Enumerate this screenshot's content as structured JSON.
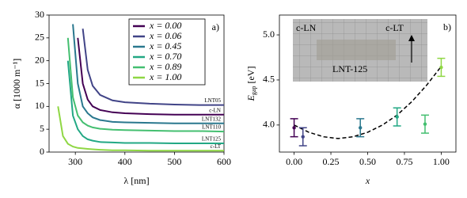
{
  "chart_data": [
    {
      "type": "line",
      "panel_label": "a)",
      "xlabel": "λ [nm]",
      "ylabel": "α [1000 m⁻¹]",
      "xlim": [
        247,
        600
      ],
      "ylim": [
        0,
        30
      ],
      "xticks": [
        300,
        400,
        500,
        600
      ],
      "yticks": [
        0,
        5,
        10,
        15,
        20,
        25,
        30
      ],
      "legend": "upper right",
      "x": [
        255,
        265,
        275,
        285,
        295,
        305,
        315,
        325,
        335,
        350,
        375,
        400,
        450,
        500,
        550,
        600
      ],
      "series": [
        {
          "name": "x = 0.00",
          "color": "#440154",
          "end_label": "c-LN",
          "values": [
            null,
            null,
            null,
            null,
            null,
            25,
            15,
            11.5,
            10,
            9.2,
            8.7,
            8.5,
            8.3,
            8.2,
            8.2,
            8.2
          ]
        },
        {
          "name": "x = 0.06",
          "color": "#414487",
          "end_label": "LNT05",
          "values": [
            null,
            null,
            null,
            null,
            null,
            null,
            27,
            18,
            14.5,
            12.5,
            11.3,
            10.9,
            10.6,
            10.4,
            10.3,
            10.3
          ]
        },
        {
          "name": "x = 0.45",
          "color": "#2a788e",
          "end_label": "LNT132",
          "values": [
            null,
            null,
            null,
            null,
            28,
            15,
            10,
            8.5,
            7.6,
            7,
            6.6,
            6.5,
            6.4,
            6.3,
            6.3,
            6.3
          ]
        },
        {
          "name": "x = 0.70",
          "color": "#22a884",
          "end_label": "LNT125",
          "values": [
            null,
            null,
            null,
            20,
            8,
            5,
            3.5,
            2.8,
            2.5,
            2.2,
            2.1,
            2,
            2,
            1.9,
            1.9,
            1.9
          ]
        },
        {
          "name": "x = 0.89",
          "color": "#44bf70",
          "end_label": "LNT110",
          "values": [
            null,
            null,
            null,
            25,
            12,
            8,
            6.5,
            5.8,
            5.4,
            5.1,
            4.9,
            4.8,
            4.7,
            4.6,
            4.6,
            4.5
          ]
        },
        {
          "name": "x = 1.00",
          "color": "#8fd744",
          "end_label": "c-LT",
          "values": [
            null,
            10,
            3.5,
            1.8,
            1.2,
            0.9,
            0.8,
            0.7,
            0.6,
            0.5,
            0.4,
            0.4,
            0.3,
            0.3,
            0.3,
            0.3
          ]
        }
      ]
    },
    {
      "type": "scatter",
      "panel_label": "b)",
      "xlabel": "x",
      "ylabel": {
        "main": "E",
        "sub": "gap",
        "unit": "[eV]"
      },
      "xlim": [
        -0.1,
        1.1
      ],
      "ylim": [
        3.7,
        5.22
      ],
      "xticks": [
        {
          "value": 0,
          "label": "0.00"
        },
        0.25,
        {
          "value": 0.5,
          "label": "0.50"
        },
        0.75,
        {
          "value": 1,
          "label": "1.00"
        }
      ],
      "yticks": [
        {
          "value": 4,
          "label": "4.0"
        },
        4.5,
        {
          "value": 5,
          "label": "5.0"
        }
      ],
      "inset_labels": [
        "c-LN",
        "c-LT",
        "LNT-125"
      ],
      "series": [
        {
          "x": [
            0,
            0.06,
            0.45,
            0.7,
            0.89,
            1
          ],
          "values": [
            3.97,
            3.87,
            3.97,
            4.09,
            4.01,
            4.64
          ],
          "errors": [
            0.1,
            0.1,
            0.1,
            0.1,
            0.1,
            0.1
          ],
          "colors": [
            "#440154",
            "#414487",
            "#2a788e",
            "#22a884",
            "#44bf70",
            "#8fd744"
          ]
        }
      ],
      "fit": {
        "color": "#000000",
        "x": [
          0,
          0.1,
          0.2,
          0.3,
          0.4,
          0.5,
          0.6,
          0.7,
          0.8,
          0.9,
          1
        ],
        "values": [
          4,
          3.92,
          3.87,
          3.85,
          3.87,
          3.92,
          4,
          4.11,
          4.26,
          4.44,
          4.65
        ]
      }
    }
  ]
}
